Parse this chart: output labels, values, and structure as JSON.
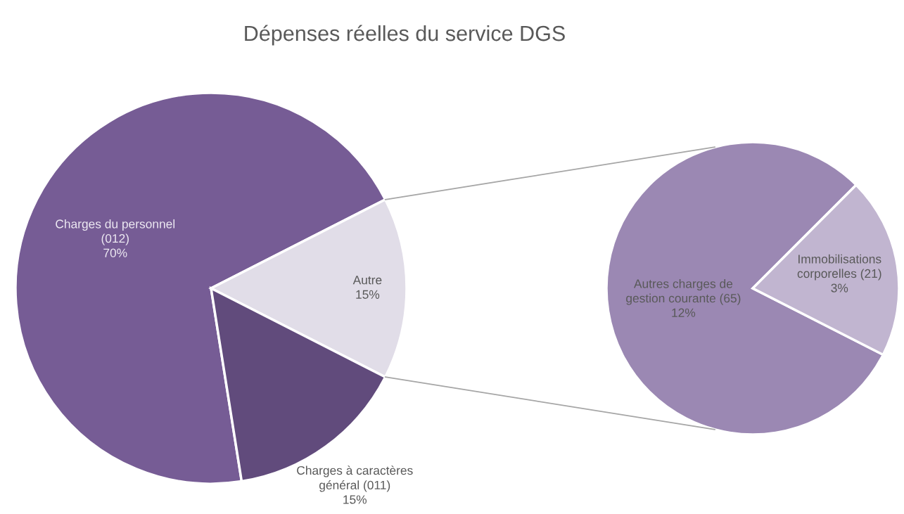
{
  "chart_data": [
    {
      "type": "pie",
      "title": "Dépenses réelles du service DGS",
      "categories": [
        "Charges du personnel\n(012)",
        "Autre",
        "Charges à caractères\ngénéral (011)"
      ],
      "values": [
        70,
        15,
        15
      ],
      "value_labels": [
        "70%",
        "15%",
        "15%"
      ],
      "colors": [
        "#765c95",
        "#e1dde8",
        "#614b7c"
      ]
    },
    {
      "type": "pie",
      "categories": [
        "Autres charges de\ngestion courante (65)",
        "Immobilisations\ncorporelles (21)"
      ],
      "values": [
        12,
        3
      ],
      "value_labels": [
        "12%",
        "3%"
      ],
      "colors": [
        "#9b88b3",
        "#c1b5d0"
      ]
    }
  ]
}
